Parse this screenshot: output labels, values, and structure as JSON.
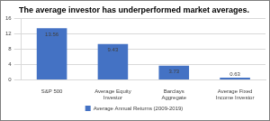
{
  "chart_data": {
    "type": "bar",
    "title": "The average investor has underperformed market averages.",
    "categories": [
      "S&P 500",
      "Average Equity Investor",
      "Barclays Aggregate",
      "Average Fixed Income Investor"
    ],
    "series": [
      {
        "name": "Average Annual Returns (2009-2019)",
        "color": "#4472c4",
        "values": [
          13.56,
          9.43,
          3.73,
          0.63
        ]
      }
    ],
    "ylim": [
      0,
      16
    ],
    "yticks": [
      0,
      4,
      8,
      12,
      16
    ],
    "grid": true,
    "legend": "bottom",
    "data_labels": true
  }
}
